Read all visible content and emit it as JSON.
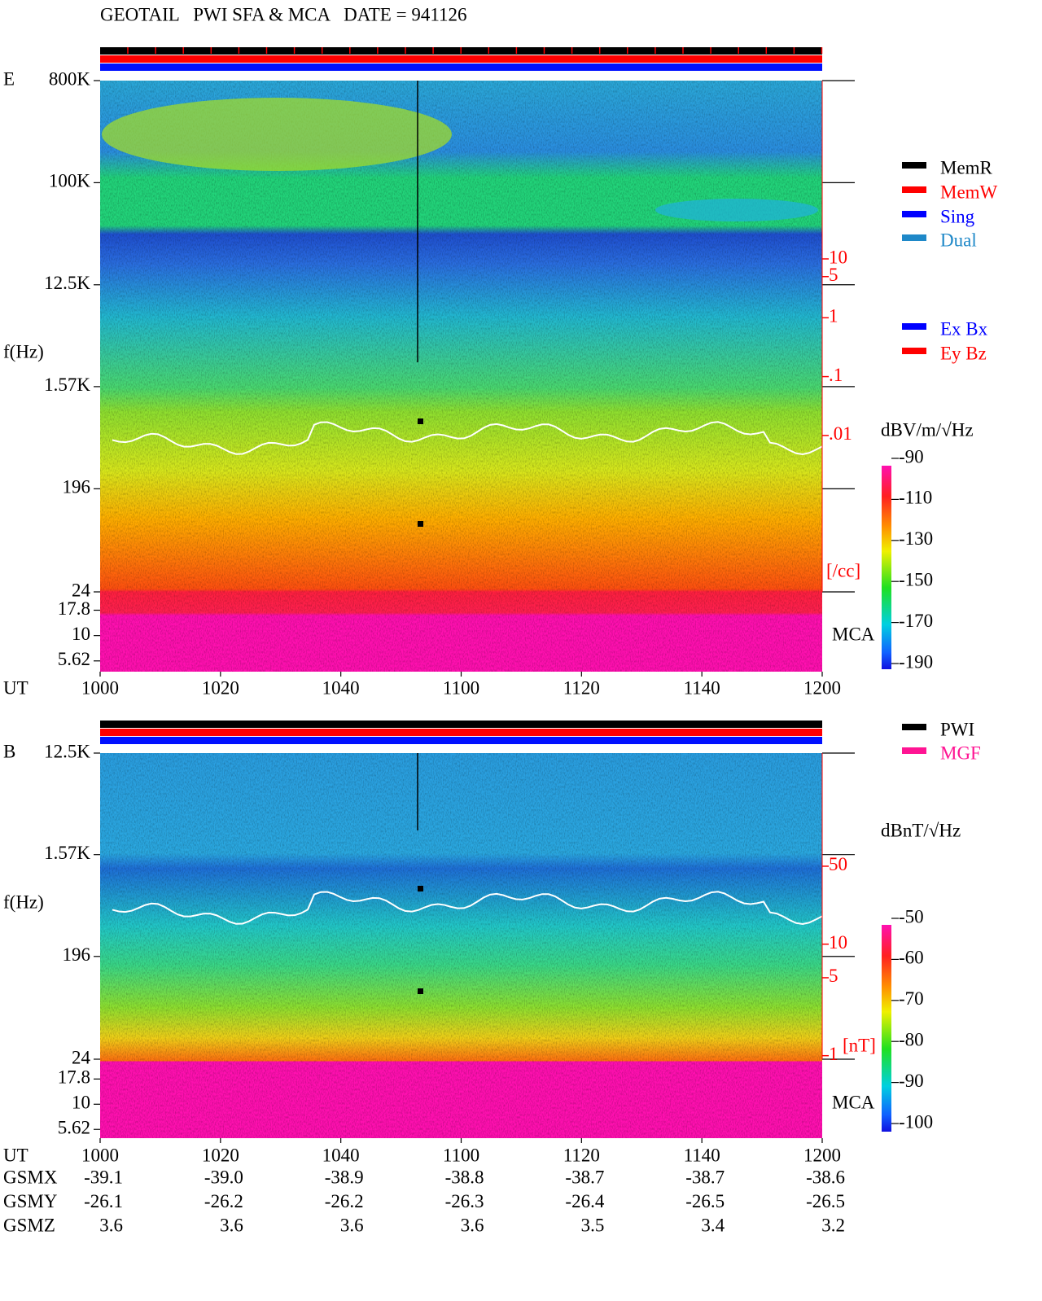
{
  "title": "GEOTAIL   PWI SFA & MCA   DATE = 941126",
  "chart_data": [
    {
      "type": "spectrogram",
      "panel_label": "E",
      "ylabel": "f(Hz)",
      "xlabel": "UT",
      "mca_label": "MCA",
      "yscale": "log",
      "ylim": [
        24,
        800000
      ],
      "yticks": [
        {
          "value": 800000,
          "label": "800K"
        },
        {
          "value": 100000,
          "label": "100K"
        },
        {
          "value": 12500,
          "label": "12.5K"
        },
        {
          "value": 1570,
          "label": "1.57K"
        },
        196,
        24
      ],
      "mca_ylim": [
        4.4,
        27
      ],
      "mca_yticks": [
        17.8,
        10,
        5.62
      ],
      "xticks": [
        "1000",
        "1020",
        "1040",
        "1100",
        "1120",
        "1140",
        "1200"
      ],
      "y2label": "[/cc]",
      "y2lim": [
        2.2e-05,
        10700
      ],
      "y2ticks": [
        10,
        5,
        1,
        {
          "value": 0.1,
          "label": ".1"
        },
        {
          "value": 0.01,
          "label": ".01"
        }
      ],
      "colorbar_label": "dBV/m/√Hz",
      "clim": [
        -190,
        -90
      ],
      "cticks": [
        -90,
        -110,
        -130,
        -150,
        -170,
        -190
      ],
      "status_legend": [
        {
          "name": "MemR",
          "color": "#000000"
        },
        {
          "name": "MemW",
          "color": "#ff0000"
        },
        {
          "name": "Sing",
          "color": "#0000ff"
        },
        {
          "name": "Dual",
          "color": "#1e88c8"
        }
      ],
      "component_legend": [
        {
          "name": "Ex Bx",
          "color": "#0000ff"
        },
        {
          "name": "Ey Bz",
          "color": "#ff0000"
        }
      ]
    },
    {
      "type": "spectrogram",
      "panel_label": "B",
      "ylabel": "f(Hz)",
      "xlabel": "UT",
      "mca_label": "MCA",
      "yscale": "log",
      "ylim": [
        24,
        12500
      ],
      "yticks": [
        {
          "value": 12500,
          "label": "12.5K"
        },
        {
          "value": 1570,
          "label": "1.57K"
        },
        196,
        24
      ],
      "mca_ylim": [
        4.6,
        28
      ],
      "mca_yticks": [
        17.8,
        10,
        5.62
      ],
      "xticks": [
        "1000",
        "1020",
        "1040",
        "1100",
        "1120",
        "1140",
        "1200"
      ],
      "y2label": "[nT]",
      "y2lim": [
        0.93,
        517
      ],
      "y2ticks": [
        50,
        10,
        5,
        1
      ],
      "colorbar_label": "dBnT/√Hz",
      "clim": [
        -100,
        -50
      ],
      "cticks": [
        -50,
        -60,
        -70,
        -80,
        -90,
        -100
      ],
      "status_legend": [
        {
          "name": "PWI",
          "color": "#000000"
        },
        {
          "name": "MGF",
          "color": "#ff1493"
        }
      ]
    }
  ],
  "orbit_table": {
    "rows": [
      {
        "label": "GSMX",
        "values": [
          "-39.1",
          "-39.0",
          "-38.9",
          "-38.8",
          "-38.7",
          "-38.7",
          "-38.6"
        ]
      },
      {
        "label": "GSMY",
        "values": [
          "-26.1",
          "-26.2",
          "-26.2",
          "-26.3",
          "-26.4",
          "-26.5",
          "-26.5"
        ]
      },
      {
        "label": "GSMZ",
        "values": [
          "3.6",
          "3.6",
          "3.6",
          "3.6",
          "3.5",
          "3.4",
          "3.2"
        ]
      }
    ]
  }
}
